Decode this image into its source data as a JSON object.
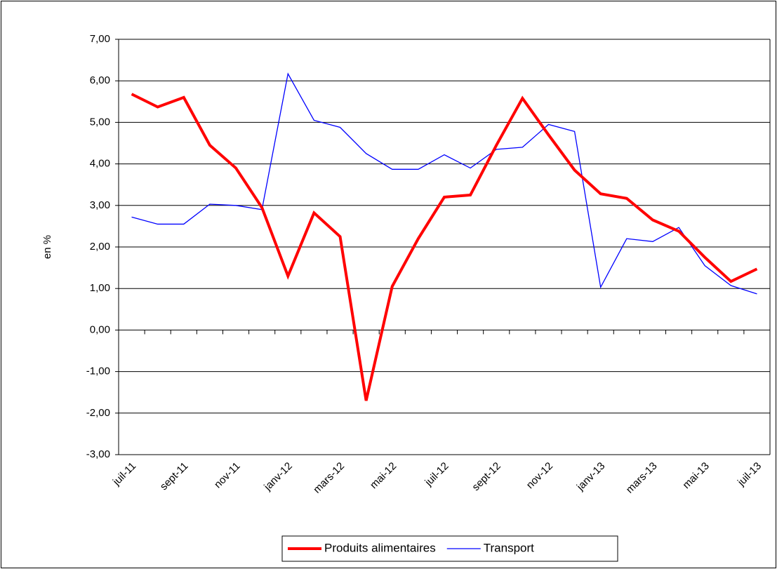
{
  "chart_data": {
    "type": "line",
    "y_label": "en %",
    "categories": [
      "juil-11",
      null,
      "sept-11",
      null,
      "nov-11",
      null,
      "janv-12",
      null,
      "mars-12",
      null,
      "mai-12",
      null,
      "juil-12",
      null,
      "sept-12",
      null,
      "nov-12",
      null,
      "janv-13",
      null,
      "mars-13",
      null,
      "mai-13",
      null,
      "juil-13"
    ],
    "series": [
      {
        "name": "Produits alimentaires",
        "color": "#ff0000",
        "values": [
          5.68,
          5.37,
          5.6,
          4.45,
          3.9,
          2.95,
          1.3,
          2.82,
          2.25,
          -1.7,
          1.05,
          2.2,
          3.2,
          3.25,
          4.45,
          5.58,
          4.7,
          3.85,
          3.28,
          3.17,
          2.65,
          2.38,
          1.75,
          1.17,
          1.47
        ]
      },
      {
        "name": "Transport",
        "color": "#0000ff",
        "values": [
          2.72,
          2.55,
          2.55,
          3.03,
          3.0,
          2.9,
          6.17,
          5.05,
          4.88,
          4.25,
          3.87,
          3.87,
          4.22,
          3.9,
          4.35,
          4.4,
          4.95,
          4.78,
          1.03,
          2.2,
          2.13,
          2.47,
          1.55,
          1.07,
          0.87
        ]
      }
    ],
    "ylim": [
      -3,
      7
    ],
    "yticks": [
      {
        "value": -3,
        "label": "-3,00"
      },
      {
        "value": -2,
        "label": "-2,00"
      },
      {
        "value": -1,
        "label": "-1,00"
      },
      {
        "value": 0,
        "label": "0,00"
      },
      {
        "value": 1,
        "label": "1,00"
      },
      {
        "value": 2,
        "label": "2,00"
      },
      {
        "value": 3,
        "label": "3,00"
      },
      {
        "value": 4,
        "label": "4,00"
      },
      {
        "value": 5,
        "label": "5,00"
      },
      {
        "value": 6,
        "label": "6,00"
      },
      {
        "value": 7,
        "label": "7,00"
      }
    ],
    "grid": true,
    "legend": "bottom"
  }
}
